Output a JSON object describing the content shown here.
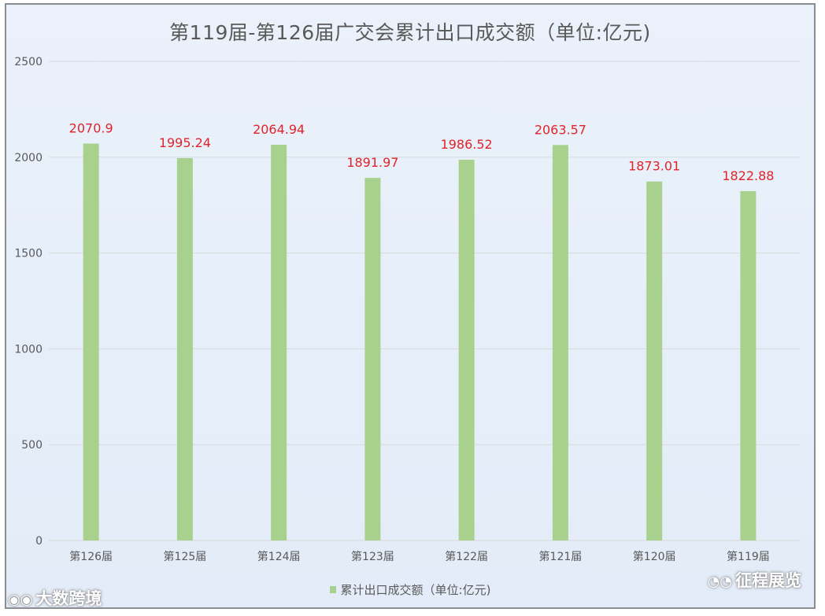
{
  "chart_data": {
    "type": "bar",
    "title": "第119届-第126届广交会累计出口成交额（单位:亿元)",
    "xlabel": "",
    "ylabel": "",
    "categories": [
      "第126届",
      "第125届",
      "第124届",
      "第123届",
      "第122届",
      "第121届",
      "第120届",
      "第119届"
    ],
    "series": [
      {
        "name": "累计出口成交额（单位:亿元)",
        "values": [
          2070.9,
          1995.24,
          2064.94,
          1891.97,
          1986.52,
          2063.57,
          1873.01,
          1822.88
        ],
        "labels": [
          "2070.9",
          "1995.24",
          "2064.94",
          "1891.97",
          "1986.52",
          "2063.57",
          "1873.01",
          "1822.88"
        ]
      }
    ],
    "ylim": [
      0,
      2500
    ],
    "yticks": [
      "0",
      "500",
      "1000",
      "1500",
      "2000",
      "2500"
    ],
    "grid": true,
    "legend_position": "bottom",
    "colors": {
      "bar": "#a9d18e",
      "data_label": "#e0242a",
      "axis_text": "#595959",
      "grid": "#d9d9d9"
    }
  },
  "watermarks": {
    "left_text": "大数跨境",
    "left_icon": "weibo-icon",
    "right_text": "征程展览",
    "right_icon": "wechat-icon"
  }
}
